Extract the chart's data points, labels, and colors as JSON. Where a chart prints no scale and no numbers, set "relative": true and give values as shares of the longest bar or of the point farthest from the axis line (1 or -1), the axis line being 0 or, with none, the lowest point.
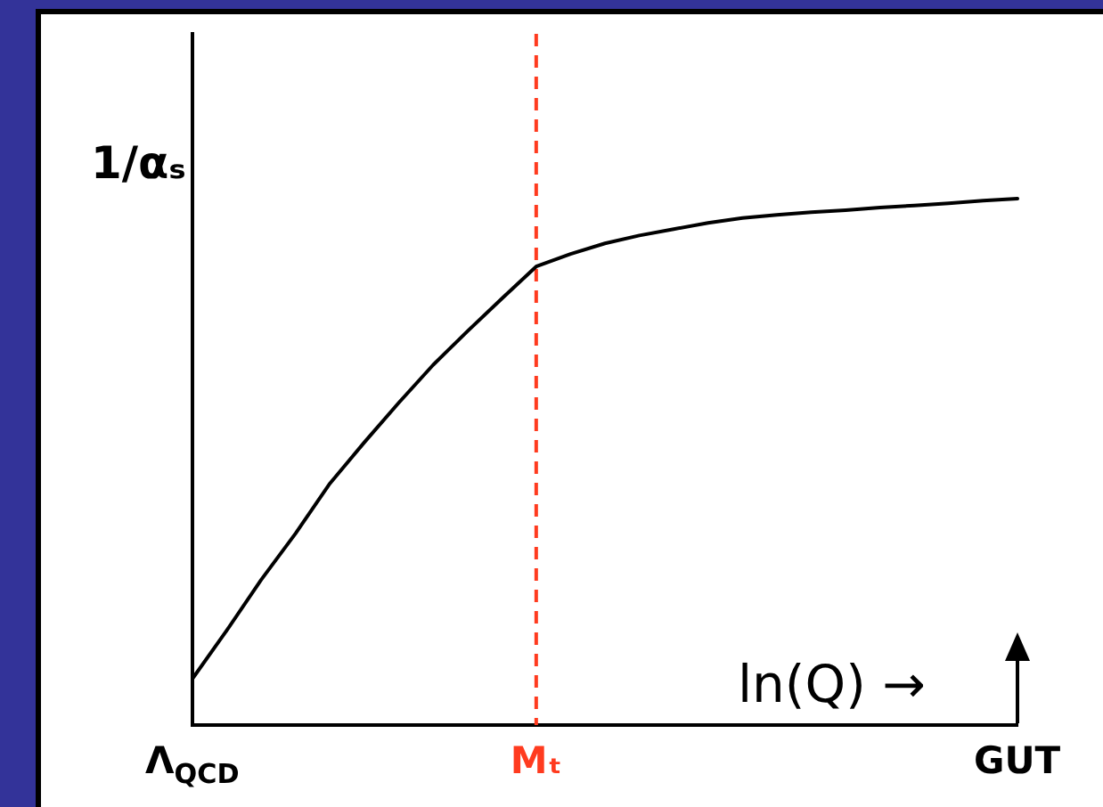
{
  "chart_data": {
    "type": "line",
    "xlabel": "ln(Q) →",
    "ylabel": "1/αₛ",
    "relative": true,
    "categories": [
      "Λ$_{QCD}$",
      null,
      null,
      null,
      null,
      null,
      null,
      null,
      null,
      null,
      "Mₜ",
      null,
      null,
      null,
      null,
      null,
      null,
      null,
      null,
      null,
      null,
      null,
      null,
      null,
      "GUT"
    ],
    "color": "#000000",
    "values": [
      0.088,
      0.18,
      0.276,
      0.364,
      0.459,
      0.537,
      0.612,
      0.684,
      0.748,
      0.81,
      0.871,
      0.895,
      0.915,
      0.93,
      0.942,
      0.954,
      0.963,
      0.969,
      0.974,
      0.978,
      0.983,
      0.987,
      0.991,
      0.996,
      1
    ],
    "ref_lines": [
      {
        "axis": "x",
        "value": "Mₜ",
        "color": "#ff3b1f",
        "line_style": "dashed"
      }
    ]
  }
}
